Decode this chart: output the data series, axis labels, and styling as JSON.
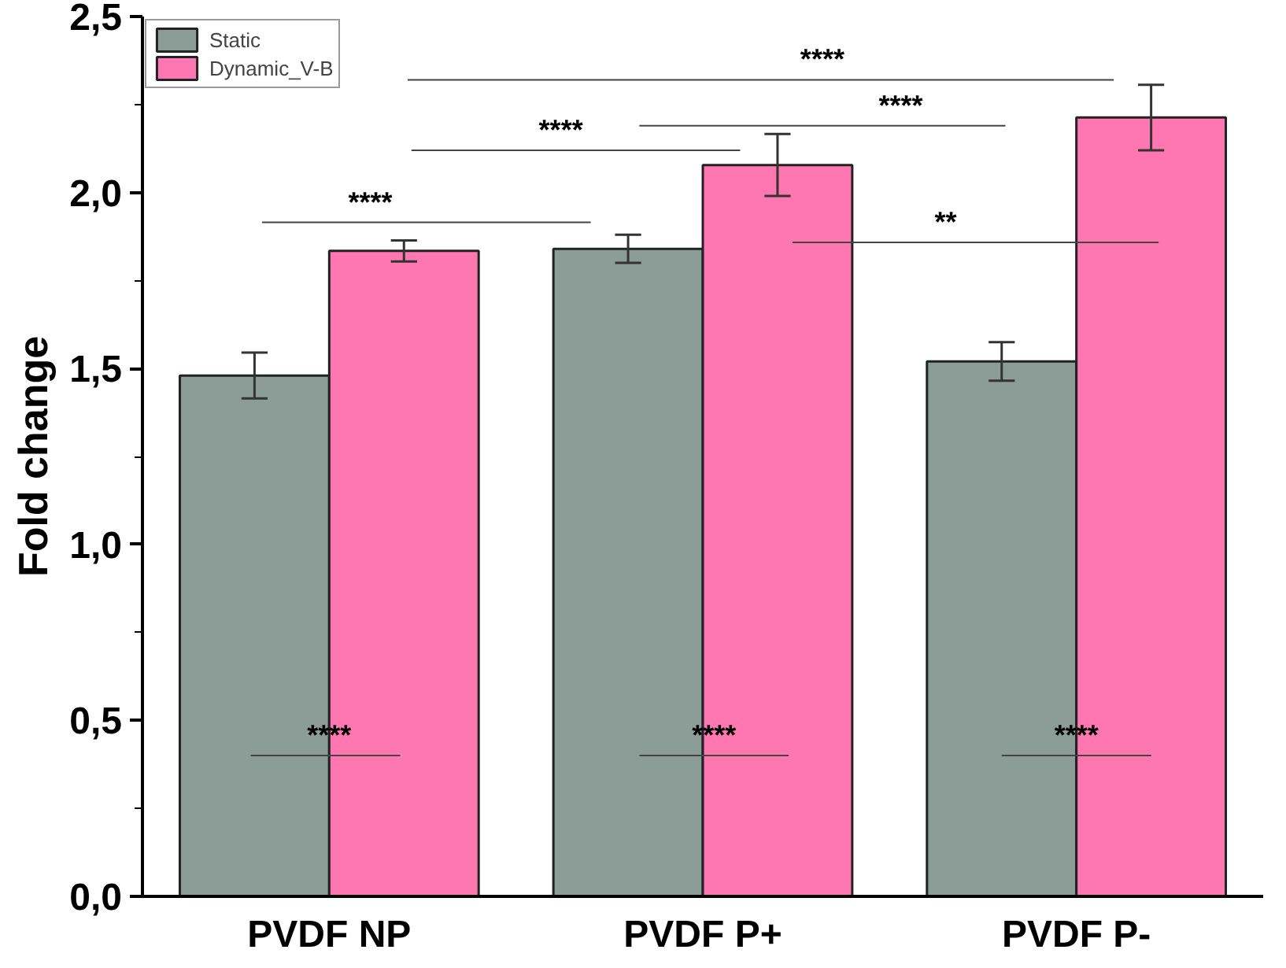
{
  "chart_data": {
    "type": "bar",
    "ylabel": "Fold change",
    "categories": [
      "PVDF NP",
      "PVDF P+",
      "PVDF P-"
    ],
    "series": [
      {
        "name": "Static",
        "color": "#8c9c97",
        "values": [
          1.48,
          1.84,
          1.52
        ],
        "errors": [
          0.065,
          0.04,
          0.055
        ]
      },
      {
        "name": "Dynamic_V-B",
        "color": "#ff77b0",
        "values": [
          1.834,
          2.078,
          2.213
        ],
        "errors": [
          0.03,
          0.088,
          0.093
        ]
      }
    ],
    "ylim": [
      0,
      2.5
    ],
    "yticks": [
      {
        "value": 0,
        "label": "0,0"
      },
      {
        "value": 0.5,
        "label": "0,5"
      },
      {
        "value": 1,
        "label": "1,0"
      },
      {
        "value": 1.5,
        "label": "1,5"
      },
      {
        "value": 2,
        "label": "2,0"
      },
      {
        "value": 2.5,
        "label": "2,5"
      }
    ],
    "annotations": [
      "****",
      "****",
      "****",
      "****",
      "**",
      "****",
      "****",
      "****"
    ],
    "legend": "top left",
    "grid": false
  }
}
